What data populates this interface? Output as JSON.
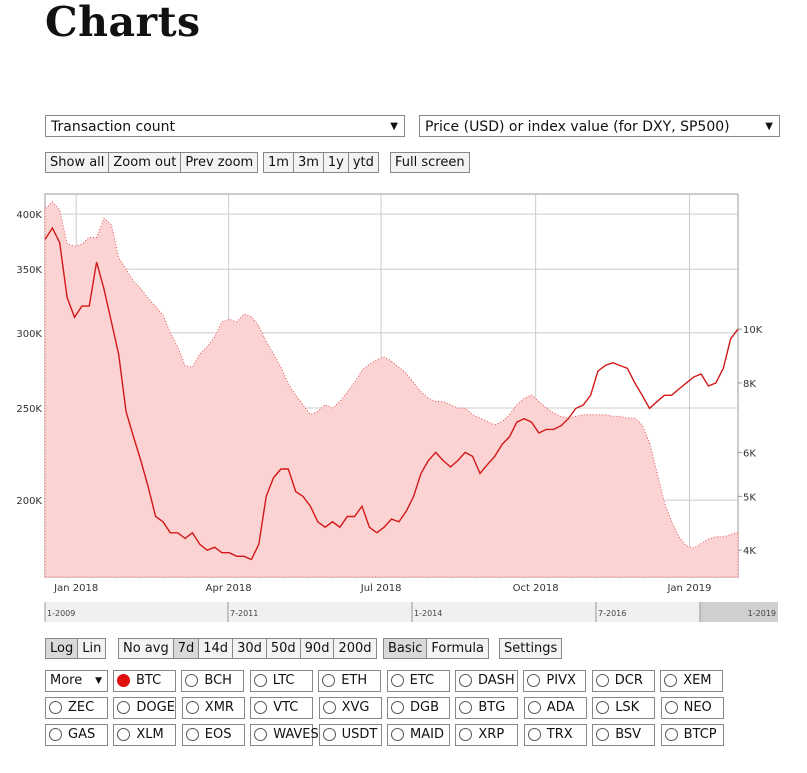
{
  "page": {
    "title": "Charts"
  },
  "selectors": {
    "metric": "Transaction count",
    "overlay": "Price (USD) or index value (for DXY, SP500)",
    "arrow": "▼"
  },
  "zoom_buttons": [
    "Show all",
    "Zoom out",
    "Prev zoom"
  ],
  "range_buttons": [
    "1m",
    "3m",
    "1y",
    "ytd"
  ],
  "fullscreen_label": "Full screen",
  "scale_buttons": [
    "Log",
    "Lin"
  ],
  "avg_buttons": [
    "No avg",
    "7d",
    "14d",
    "30d",
    "50d",
    "90d",
    "200d"
  ],
  "mode_buttons": [
    "Basic",
    "Formula"
  ],
  "settings_label": "Settings",
  "more_label": "More",
  "coins": [
    [
      "BTC",
      "BCH",
      "LTC",
      "ETH",
      "ETC",
      "DASH",
      "PIVX",
      "DCR",
      "XEM"
    ],
    [
      "ZEC",
      "DOGE",
      "XMR",
      "VTC",
      "XVG",
      "DGB",
      "BTG",
      "ADA",
      "LSK",
      "NEO"
    ],
    [
      "GAS",
      "XLM",
      "EOS",
      "WAVES",
      "USDT",
      "MAID",
      "XRP",
      "TRX",
      "BSV",
      "BTCP"
    ]
  ],
  "selected_coin": "BTC",
  "colors": {
    "area_fill": "#fcd3d3",
    "area_stroke": "#e05050",
    "price_line": "#d21818",
    "grid": "#cccccc",
    "radio_selected": "#e01010"
  },
  "chart_data": {
    "type": "area",
    "x_tick_labels": [
      "Jan 2018",
      "Apr 2018",
      "Jul 2018",
      "Oct 2018",
      "Jan 2019"
    ],
    "y_left_ticks": [
      "200K",
      "250K",
      "300K",
      "350K",
      "400K"
    ],
    "y_right_ticks": [
      "4K",
      "5K",
      "6K",
      "8K",
      "10K"
    ],
    "left_scale": "log",
    "right_scale": "log",
    "navigator_labels": [
      "1-2009",
      "7-2011",
      "1-2014",
      "7-2016",
      "1-2019"
    ],
    "series": [
      {
        "values_k": [
          405,
          412,
          404,
          372,
          370,
          372,
          378,
          378,
          396,
          390,
          360,
          350,
          340,
          334,
          326,
          320,
          313,
          300,
          290,
          277,
          276,
          285,
          290,
          297,
          308,
          310,
          308,
          314,
          312,
          305,
          294,
          285,
          276,
          265,
          258,
          252,
          246,
          248,
          252,
          250,
          254,
          260,
          266,
          274,
          278,
          281,
          283,
          280,
          276,
          272,
          266,
          260,
          256,
          254,
          254,
          252,
          250,
          250,
          246,
          244,
          242,
          240,
          242,
          246,
          252,
          256,
          258,
          254,
          250,
          247,
          245,
          244,
          245,
          246,
          246,
          246,
          246,
          245,
          245,
          244,
          244,
          240,
          230,
          214,
          199,
          190,
          183,
          179,
          178,
          180,
          182,
          183,
          183,
          184,
          185
        ]
      },
      {
        "values_usd": [
          14500,
          15200,
          14300,
          11400,
          10500,
          11000,
          11000,
          13200,
          11800,
          10300,
          9000,
          7100,
          6400,
          5800,
          5200,
          4600,
          4500,
          4300,
          4300,
          4200,
          4300,
          4100,
          4000,
          4050,
          3960,
          3960,
          3900,
          3900,
          3850,
          4100,
          5000,
          5400,
          5600,
          5600,
          5100,
          5000,
          4800,
          4500,
          4400,
          4500,
          4400,
          4600,
          4600,
          4800,
          4400,
          4300,
          4400,
          4550,
          4500,
          4700,
          5000,
          5500,
          5800,
          6000,
          5800,
          5650,
          5800,
          6000,
          5900,
          5500,
          5700,
          5900,
          6200,
          6400,
          6800,
          6900,
          6800,
          6500,
          6600,
          6600,
          6700,
          6900,
          7200,
          7300,
          7600,
          8400,
          8600,
          8700,
          8600,
          8500,
          8000,
          7600,
          7200,
          7400,
          7600,
          7600,
          7800,
          8000,
          8200,
          8300,
          7900,
          8000,
          8500,
          9600,
          10000
        ]
      }
    ]
  }
}
